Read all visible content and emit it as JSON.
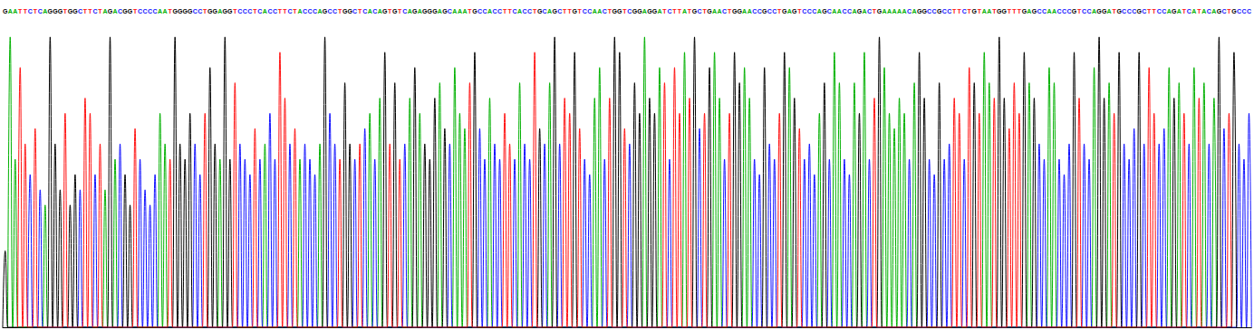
{
  "chart_data": {
    "type": "line",
    "categories": [
      "G",
      "A",
      "A",
      "T",
      "T",
      "C",
      "T",
      "C",
      "A",
      "G",
      "G",
      "G",
      "T",
      "G",
      "G",
      "C",
      "T",
      "T",
      "C",
      "T",
      "A",
      "G",
      "A",
      "C",
      "G",
      "G",
      "T",
      "C",
      "C",
      "C",
      "C",
      "A",
      "A",
      "T",
      "G",
      "G",
      "G",
      "G",
      "C",
      "C",
      "T",
      "G",
      "G",
      "A",
      "G",
      "G",
      "T",
      "C",
      "C",
      "C",
      "T",
      "C",
      "A",
      "C",
      "C",
      "T",
      "T",
      "C",
      "T",
      "A",
      "C",
      "C",
      "C",
      "A",
      "G",
      "C",
      "C",
      "T",
      "G",
      "G",
      "C",
      "T",
      "C",
      "A",
      "C",
      "A",
      "G",
      "T",
      "G",
      "T",
      "C",
      "A",
      "G",
      "A",
      "G",
      "G",
      "G",
      "A",
      "G",
      "C",
      "A",
      "A",
      "A",
      "T",
      "G",
      "C",
      "C",
      "A",
      "C",
      "C",
      "T",
      "T",
      "C",
      "A",
      "C",
      "C",
      "T",
      "G",
      "C",
      "A",
      "G",
      "C",
      "T",
      "T",
      "G",
      "T",
      "C",
      "C",
      "A",
      "A",
      "C",
      "T",
      "G",
      "G",
      "T",
      "C",
      "G",
      "G",
      "A",
      "G",
      "G",
      "A",
      "T",
      "C",
      "T",
      "T",
      "A",
      "T",
      "G",
      "C",
      "T",
      "G",
      "A",
      "A",
      "C",
      "T",
      "G",
      "G",
      "A",
      "A",
      "C",
      "C",
      "G",
      "C",
      "C",
      "T",
      "G",
      "A",
      "G",
      "T",
      "C",
      "C",
      "C",
      "A",
      "G",
      "C",
      "A",
      "A",
      "C",
      "C",
      "A",
      "G",
      "A",
      "C",
      "T",
      "G",
      "A",
      "A",
      "A",
      "A",
      "A",
      "C",
      "A",
      "G",
      "G",
      "C",
      "C",
      "G",
      "C",
      "C",
      "T",
      "T",
      "C",
      "T",
      "G",
      "T",
      "A",
      "A",
      "T",
      "G",
      "G",
      "T",
      "T",
      "T",
      "G",
      "A",
      "G",
      "C",
      "C",
      "A",
      "A",
      "C",
      "C",
      "C",
      "G",
      "T",
      "C",
      "C",
      "A",
      "G",
      "G",
      "A",
      "T",
      "G",
      "C",
      "C",
      "C",
      "G",
      "C",
      "T",
      "T",
      "C",
      "C",
      "A",
      "G",
      "A",
      "T",
      "C",
      "A",
      "T",
      "A",
      "C",
      "A",
      "G",
      "C",
      "T",
      "G",
      "C",
      "C",
      "C"
    ],
    "values": [
      25,
      95,
      55,
      85,
      60,
      50,
      65,
      45,
      40,
      95,
      60,
      45,
      70,
      40,
      50,
      45,
      75,
      70,
      50,
      60,
      45,
      95,
      55,
      60,
      50,
      40,
      65,
      55,
      45,
      40,
      50,
      70,
      60,
      55,
      95,
      60,
      55,
      70,
      60,
      50,
      70,
      85,
      60,
      55,
      95,
      55,
      80,
      60,
      55,
      50,
      65,
      55,
      60,
      70,
      55,
      90,
      75,
      60,
      65,
      55,
      60,
      55,
      50,
      60,
      95,
      70,
      60,
      55,
      80,
      60,
      55,
      60,
      65,
      70,
      55,
      75,
      90,
      60,
      80,
      55,
      60,
      75,
      85,
      70,
      60,
      55,
      75,
      80,
      65,
      60,
      85,
      70,
      65,
      80,
      90,
      65,
      55,
      75,
      60,
      55,
      70,
      60,
      55,
      80,
      60,
      55,
      90,
      65,
      60,
      80,
      95,
      60,
      75,
      70,
      90,
      65,
      55,
      50,
      75,
      85,
      55,
      75,
      95,
      90,
      65,
      60,
      80,
      70,
      95,
      75,
      70,
      85,
      80,
      55,
      85,
      70,
      90,
      75,
      95,
      65,
      70,
      85,
      90,
      75,
      55,
      70,
      90,
      80,
      85,
      75,
      55,
      50,
      85,
      60,
      55,
      70,
      90,
      85,
      75,
      65,
      55,
      60,
      50,
      70,
      80,
      55,
      90,
      80,
      55,
      50,
      80,
      70,
      90,
      55,
      75,
      95,
      85,
      70,
      65,
      75,
      70,
      55,
      80,
      90,
      75,
      55,
      50,
      80,
      55,
      60,
      75,
      70,
      55,
      85,
      80,
      70,
      90,
      80,
      75,
      95,
      75,
      65,
      80,
      70,
      90,
      80,
      75,
      60,
      55,
      85,
      80,
      55,
      50,
      60,
      90,
      75,
      60,
      55,
      85,
      95,
      75,
      80,
      70,
      90,
      60,
      55,
      65,
      90,
      60,
      85,
      70,
      60,
      65,
      85,
      75,
      80,
      70,
      60,
      85,
      75,
      80,
      60,
      75,
      95,
      65,
      70,
      90,
      60,
      55,
      70
    ],
    "series": [
      {
        "name": "A",
        "color": "#00b000"
      },
      {
        "name": "C",
        "color": "#1010ff"
      },
      {
        "name": "G",
        "color": "#000000"
      },
      {
        "name": "T",
        "color": "#ff1010"
      }
    ],
    "ylim": [
      0,
      100
    ],
    "grid": false,
    "tick_labels": "x"
  }
}
